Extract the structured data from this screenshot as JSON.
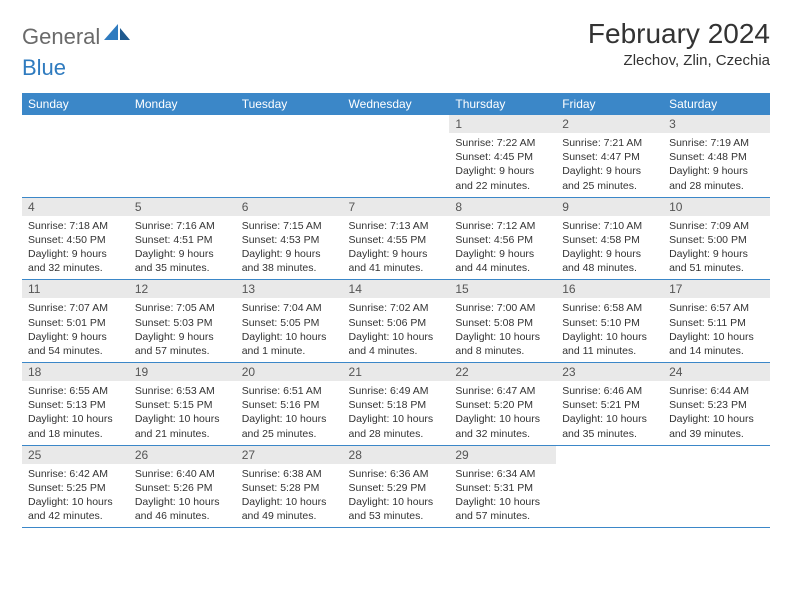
{
  "logo": {
    "textDark": "General",
    "textBlue": "Blue",
    "darkColor": "#6a6a6a",
    "blueColor": "#2f7bbf"
  },
  "header": {
    "monthTitle": "February 2024",
    "location": "Zlechov, Zlin, Czechia"
  },
  "colors": {
    "headerBg": "#3b87c8",
    "headerText": "#ffffff",
    "dayNumBg": "#e9e9e9",
    "dayNumText": "#555555",
    "ruleColor": "#3b87c8",
    "bodyText": "#333333"
  },
  "dayHeaders": [
    "Sunday",
    "Monday",
    "Tuesday",
    "Wednesday",
    "Thursday",
    "Friday",
    "Saturday"
  ],
  "weeks": [
    [
      null,
      null,
      null,
      null,
      {
        "n": "1",
        "sr": "Sunrise: 7:22 AM",
        "ss": "Sunset: 4:45 PM",
        "dl": "Daylight: 9 hours and 22 minutes."
      },
      {
        "n": "2",
        "sr": "Sunrise: 7:21 AM",
        "ss": "Sunset: 4:47 PM",
        "dl": "Daylight: 9 hours and 25 minutes."
      },
      {
        "n": "3",
        "sr": "Sunrise: 7:19 AM",
        "ss": "Sunset: 4:48 PM",
        "dl": "Daylight: 9 hours and 28 minutes."
      }
    ],
    [
      {
        "n": "4",
        "sr": "Sunrise: 7:18 AM",
        "ss": "Sunset: 4:50 PM",
        "dl": "Daylight: 9 hours and 32 minutes."
      },
      {
        "n": "5",
        "sr": "Sunrise: 7:16 AM",
        "ss": "Sunset: 4:51 PM",
        "dl": "Daylight: 9 hours and 35 minutes."
      },
      {
        "n": "6",
        "sr": "Sunrise: 7:15 AM",
        "ss": "Sunset: 4:53 PM",
        "dl": "Daylight: 9 hours and 38 minutes."
      },
      {
        "n": "7",
        "sr": "Sunrise: 7:13 AM",
        "ss": "Sunset: 4:55 PM",
        "dl": "Daylight: 9 hours and 41 minutes."
      },
      {
        "n": "8",
        "sr": "Sunrise: 7:12 AM",
        "ss": "Sunset: 4:56 PM",
        "dl": "Daylight: 9 hours and 44 minutes."
      },
      {
        "n": "9",
        "sr": "Sunrise: 7:10 AM",
        "ss": "Sunset: 4:58 PM",
        "dl": "Daylight: 9 hours and 48 minutes."
      },
      {
        "n": "10",
        "sr": "Sunrise: 7:09 AM",
        "ss": "Sunset: 5:00 PM",
        "dl": "Daylight: 9 hours and 51 minutes."
      }
    ],
    [
      {
        "n": "11",
        "sr": "Sunrise: 7:07 AM",
        "ss": "Sunset: 5:01 PM",
        "dl": "Daylight: 9 hours and 54 minutes."
      },
      {
        "n": "12",
        "sr": "Sunrise: 7:05 AM",
        "ss": "Sunset: 5:03 PM",
        "dl": "Daylight: 9 hours and 57 minutes."
      },
      {
        "n": "13",
        "sr": "Sunrise: 7:04 AM",
        "ss": "Sunset: 5:05 PM",
        "dl": "Daylight: 10 hours and 1 minute."
      },
      {
        "n": "14",
        "sr": "Sunrise: 7:02 AM",
        "ss": "Sunset: 5:06 PM",
        "dl": "Daylight: 10 hours and 4 minutes."
      },
      {
        "n": "15",
        "sr": "Sunrise: 7:00 AM",
        "ss": "Sunset: 5:08 PM",
        "dl": "Daylight: 10 hours and 8 minutes."
      },
      {
        "n": "16",
        "sr": "Sunrise: 6:58 AM",
        "ss": "Sunset: 5:10 PM",
        "dl": "Daylight: 10 hours and 11 minutes."
      },
      {
        "n": "17",
        "sr": "Sunrise: 6:57 AM",
        "ss": "Sunset: 5:11 PM",
        "dl": "Daylight: 10 hours and 14 minutes."
      }
    ],
    [
      {
        "n": "18",
        "sr": "Sunrise: 6:55 AM",
        "ss": "Sunset: 5:13 PM",
        "dl": "Daylight: 10 hours and 18 minutes."
      },
      {
        "n": "19",
        "sr": "Sunrise: 6:53 AM",
        "ss": "Sunset: 5:15 PM",
        "dl": "Daylight: 10 hours and 21 minutes."
      },
      {
        "n": "20",
        "sr": "Sunrise: 6:51 AM",
        "ss": "Sunset: 5:16 PM",
        "dl": "Daylight: 10 hours and 25 minutes."
      },
      {
        "n": "21",
        "sr": "Sunrise: 6:49 AM",
        "ss": "Sunset: 5:18 PM",
        "dl": "Daylight: 10 hours and 28 minutes."
      },
      {
        "n": "22",
        "sr": "Sunrise: 6:47 AM",
        "ss": "Sunset: 5:20 PM",
        "dl": "Daylight: 10 hours and 32 minutes."
      },
      {
        "n": "23",
        "sr": "Sunrise: 6:46 AM",
        "ss": "Sunset: 5:21 PM",
        "dl": "Daylight: 10 hours and 35 minutes."
      },
      {
        "n": "24",
        "sr": "Sunrise: 6:44 AM",
        "ss": "Sunset: 5:23 PM",
        "dl": "Daylight: 10 hours and 39 minutes."
      }
    ],
    [
      {
        "n": "25",
        "sr": "Sunrise: 6:42 AM",
        "ss": "Sunset: 5:25 PM",
        "dl": "Daylight: 10 hours and 42 minutes."
      },
      {
        "n": "26",
        "sr": "Sunrise: 6:40 AM",
        "ss": "Sunset: 5:26 PM",
        "dl": "Daylight: 10 hours and 46 minutes."
      },
      {
        "n": "27",
        "sr": "Sunrise: 6:38 AM",
        "ss": "Sunset: 5:28 PM",
        "dl": "Daylight: 10 hours and 49 minutes."
      },
      {
        "n": "28",
        "sr": "Sunrise: 6:36 AM",
        "ss": "Sunset: 5:29 PM",
        "dl": "Daylight: 10 hours and 53 minutes."
      },
      {
        "n": "29",
        "sr": "Sunrise: 6:34 AM",
        "ss": "Sunset: 5:31 PM",
        "dl": "Daylight: 10 hours and 57 minutes."
      },
      null,
      null
    ]
  ]
}
